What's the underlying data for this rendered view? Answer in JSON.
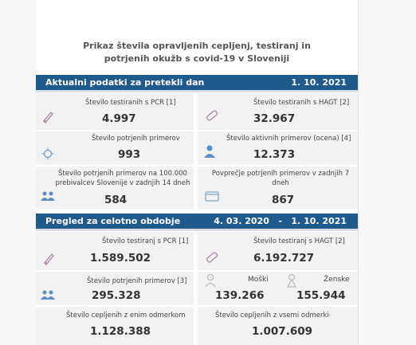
{
  "title": [
    "Prikaz števila opravljenih cepljenj, testiranj in",
    "potrjenih okužb s covid-19 v Sloveniji"
  ],
  "section1": {
    "label": "Aktualni podatki za pretekli dan",
    "date": "1. 10. 2021",
    "cards": [
      {
        "caption": [
          "Število testiranih s PCR [1]"
        ],
        "value": "4.997",
        "icon": "test-tube-icon"
      },
      {
        "caption": [
          "Število testiranih s HAGT [2]"
        ],
        "value": "32.967",
        "icon": "rapid-test-icon"
      },
      {
        "caption": [
          "Število potrjenih primerov"
        ],
        "value": "993",
        "icon": "virus-icon"
      },
      {
        "caption": [
          "Število aktivnih primerov (ocena) [4]"
        ],
        "value": "12.373",
        "icon": "person-icon"
      },
      {
        "caption": [
          "Število potrjenih primerov na 100.000",
          "prebivalcev Slovenije v zadnjih 14 dneh"
        ],
        "value": "584",
        "icon": "people-group-icon"
      },
      {
        "caption": [
          "Povprečje potrjenih primerov v zadnjih 7",
          "dneh"
        ],
        "value": "867",
        "icon": "calendar-icon"
      }
    ]
  },
  "section2": {
    "label": "Pregled za celotno obdobje",
    "date": "4. 03. 2020   -   1. 10. 2021",
    "cards": [
      {
        "caption": [
          "Število testiranj s PCR [1]"
        ],
        "value": "1.589.502",
        "icon": "test-tube-icon"
      },
      {
        "caption": [
          "Število testiranj s HAGT [2]"
        ],
        "value": "6.192.727",
        "icon": "rapid-test-icon"
      },
      {
        "caption": [
          "Število potrjenih primerov [3]"
        ],
        "value": "295.328",
        "icon": "people-group-icon"
      }
    ],
    "men": {
      "label": "Moški",
      "value": "139.266",
      "icon": "man-icon"
    },
    "women": {
      "label": "Ženske",
      "value": "155.944",
      "icon": "woman-icon"
    },
    "vaccinated_one": {
      "caption": "Število cepljenih z enim odmerkom",
      "value": "1.128.388"
    },
    "vaccinated_all": {
      "caption": "Število cepljenih z vsemi odmerki",
      "value": "1.007.609"
    }
  },
  "colors": {
    "header": "#1f5a8c",
    "card": "#f2f2f2",
    "icon": "#b08bb0"
  }
}
